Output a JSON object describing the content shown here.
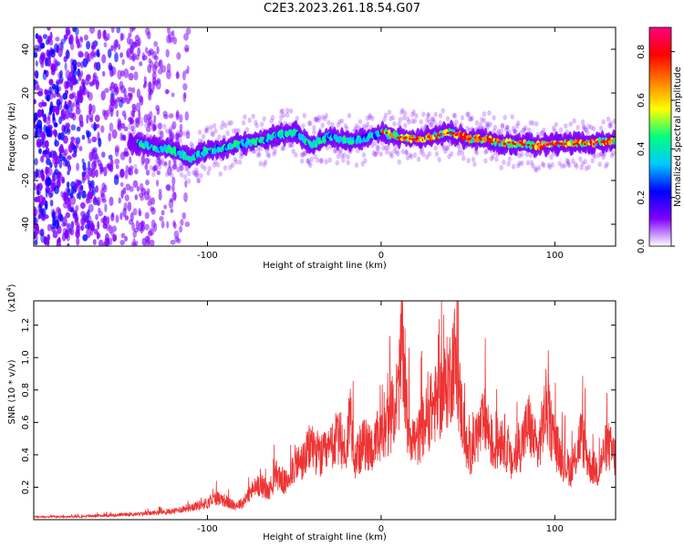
{
  "title": "C2E3.2023.261.18.54.G07",
  "chart_data": [
    {
      "type": "heatmap",
      "title": "",
      "xlabel": "Height of straight line (km)",
      "ylabel": "Frequency (Hz)",
      "xlim": [
        -200,
        135
      ],
      "ylim": [
        -50,
        50
      ],
      "x_ticks": [
        "-100",
        "0",
        "100"
      ],
      "y_ticks": [
        "-40",
        "-20",
        "0",
        "20",
        "40"
      ],
      "colorbar": {
        "label": "Normalized spectral amplitude",
        "range": [
          0,
          0.9
        ],
        "ticks": [
          "0.0",
          "0.2",
          "0.4",
          "0.6",
          "0.8"
        ],
        "colors": [
          "#ffffff",
          "#8000ff",
          "#0000ff",
          "#00c8ff",
          "#00ff80",
          "#ffff00",
          "#ff8000",
          "#ff0000",
          "#ff0080"
        ]
      },
      "ridge": {
        "x": [
          -140,
          -130,
          -120,
          -110,
          -100,
          -90,
          -80,
          -70,
          -60,
          -50,
          -40,
          -30,
          -20,
          -10,
          0,
          10,
          20,
          30,
          40,
          50,
          60,
          70,
          80,
          90,
          100,
          110,
          120,
          130
        ],
        "y": [
          -3,
          -5,
          -6,
          -10,
          -6,
          -5,
          -3,
          -2,
          1,
          2,
          -4,
          0,
          -2,
          -1,
          2,
          0,
          -1,
          0,
          2,
          -1,
          -1,
          -3,
          -3,
          -4,
          -3,
          -3,
          -3,
          -2
        ]
      },
      "noise_region_x": [
        -200,
        -110
      ]
    },
    {
      "type": "line",
      "title": "",
      "xlabel": "Height of straight line (km)",
      "ylabel": "SNR (10 * v/v)",
      "y_multiplier": "(x10",
      "y_multiplier_exp": "4",
      "y_multiplier_close": ")",
      "xlim": [
        -200,
        135
      ],
      "ylim": [
        0,
        1.35
      ],
      "x_ticks": [
        "-100",
        "0",
        "100"
      ],
      "y_ticks": [
        "0.2",
        "0.4",
        "0.6",
        "0.8",
        "1.0",
        "1.2"
      ],
      "color": "#ee3333",
      "x": [
        -200,
        -180,
        -160,
        -140,
        -130,
        -120,
        -110,
        -100,
        -95,
        -90,
        -85,
        -80,
        -75,
        -70,
        -65,
        -60,
        -55,
        -50,
        -45,
        -40,
        -35,
        -30,
        -25,
        -20,
        -18,
        -15,
        -10,
        -5,
        0,
        5,
        10,
        12,
        15,
        20,
        25,
        30,
        35,
        40,
        42,
        45,
        50,
        55,
        60,
        65,
        70,
        75,
        80,
        85,
        90,
        95,
        100,
        105,
        110,
        115,
        120,
        125,
        130,
        135
      ],
      "y": [
        0.02,
        0.02,
        0.03,
        0.04,
        0.05,
        0.06,
        0.09,
        0.12,
        0.16,
        0.14,
        0.1,
        0.12,
        0.2,
        0.26,
        0.2,
        0.33,
        0.26,
        0.4,
        0.42,
        0.55,
        0.45,
        0.5,
        0.6,
        0.48,
        0.8,
        0.45,
        0.55,
        0.52,
        0.58,
        0.72,
        0.92,
        1.3,
        0.7,
        0.55,
        0.7,
        0.82,
        0.9,
        1.05,
        1.2,
        0.9,
        0.45,
        0.6,
        0.72,
        0.5,
        0.62,
        0.4,
        0.52,
        0.7,
        0.48,
        0.82,
        0.55,
        0.42,
        0.35,
        0.62,
        0.4,
        0.35,
        0.55,
        0.45
      ]
    }
  ]
}
